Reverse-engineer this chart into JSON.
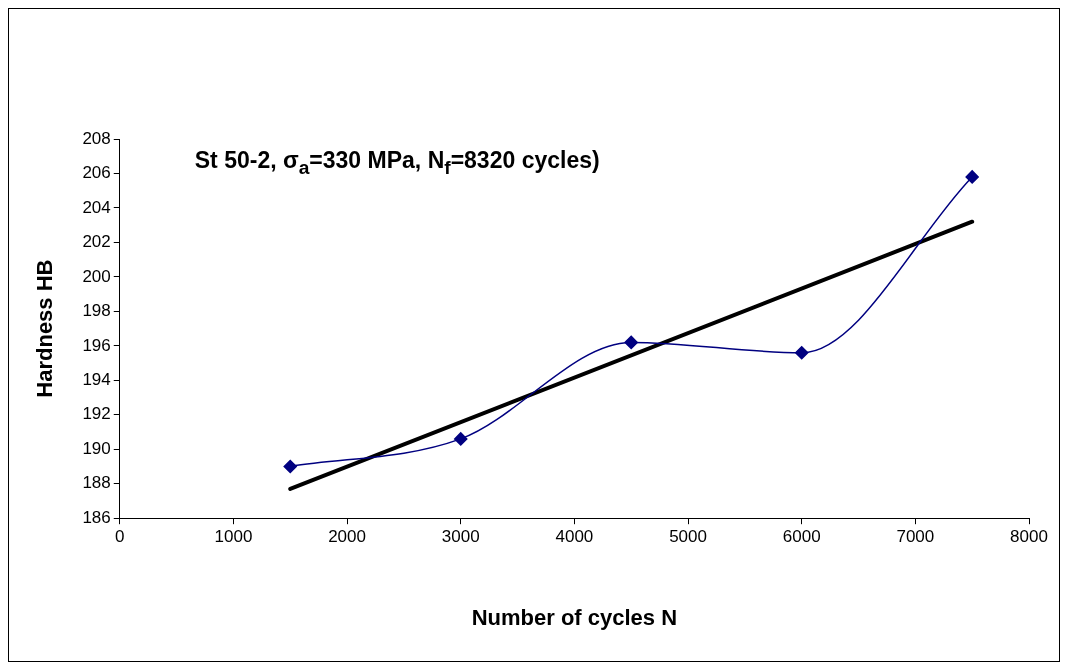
{
  "chart_data": {
    "type": "line",
    "title": "St 50-2, σ$_{a}$=330 MPa, N$_{f}$=8320 cycles)",
    "xlabel": "Number of cycles N",
    "ylabel": "Hardness HB",
    "xlim": [
      0,
      8000
    ],
    "xticks": [
      0,
      1000,
      2000,
      3000,
      4000,
      5000,
      6000,
      7000,
      8000
    ],
    "ylim": [
      186,
      208
    ],
    "yticks": [
      186,
      188,
      190,
      192,
      194,
      196,
      198,
      200,
      202,
      204,
      206,
      208
    ],
    "grid": false,
    "legend": false,
    "series": [
      {
        "type": "line",
        "color": "#000080",
        "marker": "diamond",
        "line_style": "solid",
        "x": [
          1500,
          3000,
          4500,
          6000,
          7500
        ],
        "values": [
          189.0,
          190.6,
          196.2,
          195.6,
          205.8
        ]
      },
      {
        "type": "line",
        "color": "#000000",
        "marker": "none",
        "line_style": "solid",
        "x": [
          1500,
          7500
        ],
        "values": [
          187.7,
          203.2
        ]
      }
    ]
  }
}
